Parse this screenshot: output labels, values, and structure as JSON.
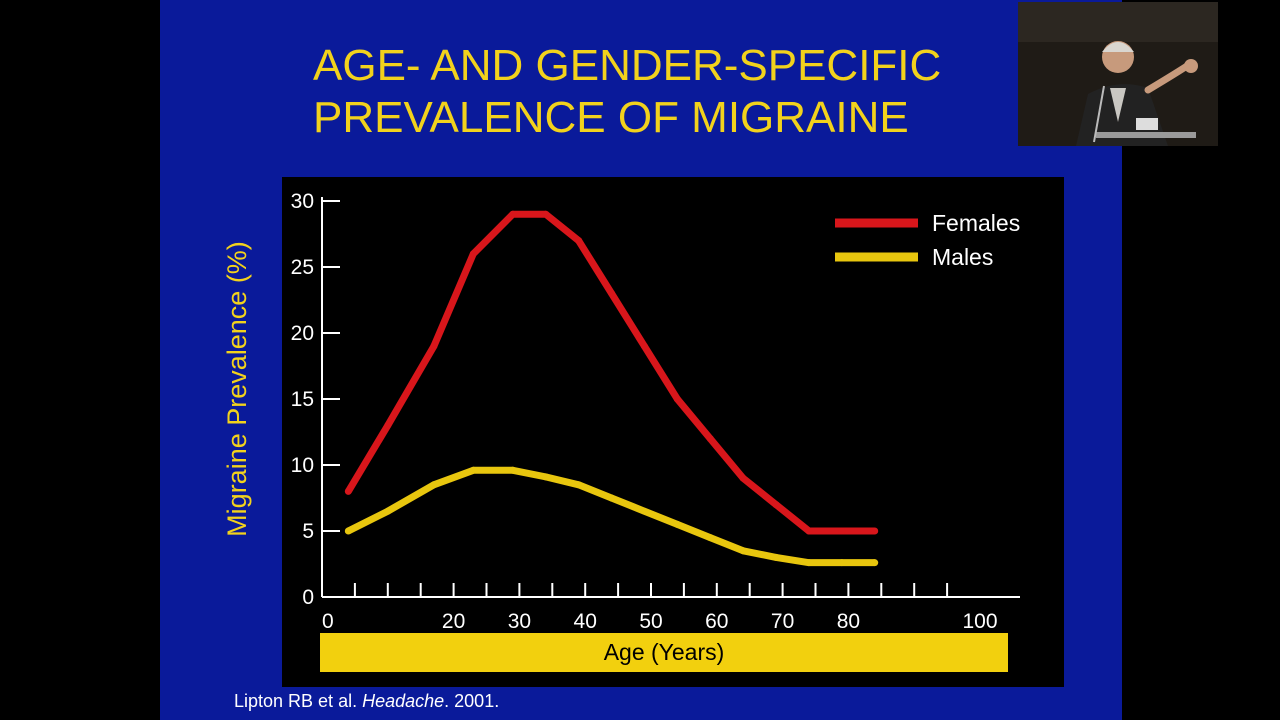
{
  "slide": {
    "title_line1": "AGE- AND GENDER-SPECIFIC",
    "title_line2": "PREVALENCE OF MIGRAINE",
    "citation_prefix": "Lipton RB et al. ",
    "citation_journal": "Headache",
    "citation_suffix": ". 2001.",
    "colors": {
      "background": "#0a1a9a",
      "title": "#f2d21c",
      "xlabel_band": "#f2d00e"
    }
  },
  "chart_data": {
    "type": "line",
    "title": "",
    "xlabel": "Age (Years)",
    "ylabel": "Migraine Prevalence (%)",
    "xlim": [
      0,
      100
    ],
    "ylim": [
      0,
      30
    ],
    "xticks": [
      0,
      20,
      30,
      40,
      50,
      60,
      70,
      80,
      100
    ],
    "yticks": [
      0,
      5,
      10,
      15,
      20,
      25,
      30
    ],
    "grid": false,
    "legend_position": "top-right",
    "series": [
      {
        "name": "Females",
        "color": "#d8161b",
        "x": [
          4,
          10,
          17,
          23,
          29,
          34,
          39,
          44,
          49,
          54,
          59,
          64,
          69,
          74,
          79,
          84
        ],
        "y": [
          8,
          13,
          19,
          26,
          29,
          29,
          27,
          23,
          19,
          15,
          12,
          9,
          7,
          5,
          5,
          5
        ]
      },
      {
        "name": "Males",
        "color": "#e8c60e",
        "x": [
          4,
          10,
          17,
          23,
          29,
          34,
          39,
          44,
          49,
          54,
          59,
          64,
          69,
          74,
          79,
          84
        ],
        "y": [
          5,
          6.5,
          8.5,
          9.6,
          9.6,
          9.1,
          8.5,
          7.5,
          6.5,
          5.5,
          4.5,
          3.5,
          3,
          2.6,
          2.6,
          2.6
        ]
      }
    ]
  },
  "webcam": {
    "icon": "presenter-video"
  }
}
